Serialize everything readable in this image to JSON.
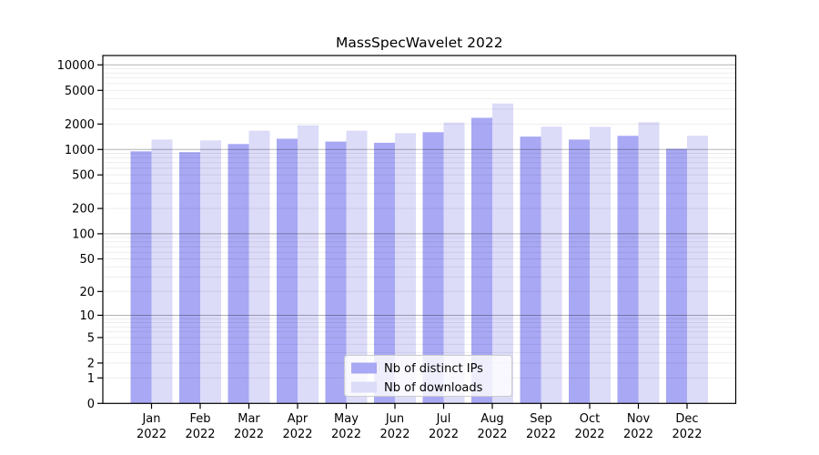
{
  "figure": {
    "background": "#ffffff",
    "axis_color": "#000000",
    "minor_grid_rgba": "rgba(0,0,0,0.08)",
    "major_grid_rgba": "rgba(0,0,0,0.30)"
  },
  "chart_data": {
    "type": "bar",
    "title": "MassSpecWavelet 2022",
    "yscale": "log1p",
    "ylim": [
      0,
      12800
    ],
    "grid": true,
    "legend_position": "lower center",
    "categories": [
      "Jan",
      "Feb",
      "Mar",
      "Apr",
      "May",
      "Jun",
      "Jul",
      "Aug",
      "Sep",
      "Oct",
      "Nov",
      "Dec"
    ],
    "year_label": "2022",
    "yticks": [
      10000,
      5000,
      2000,
      1000,
      500,
      200,
      100,
      50,
      20,
      10,
      5,
      2,
      1,
      0
    ],
    "series": [
      {
        "name": "Nb of distinct IPs",
        "color": "#a8a8f4",
        "values": [
          950,
          930,
          1160,
          1340,
          1240,
          1200,
          1600,
          2370,
          1420,
          1310,
          1450,
          1020
        ]
      },
      {
        "name": "Nb of downloads",
        "color": "#dcdbf8",
        "values": [
          1310,
          1280,
          1670,
          1930,
          1670,
          1560,
          2080,
          3500,
          1860,
          1850,
          2100,
          1450
        ]
      }
    ]
  }
}
